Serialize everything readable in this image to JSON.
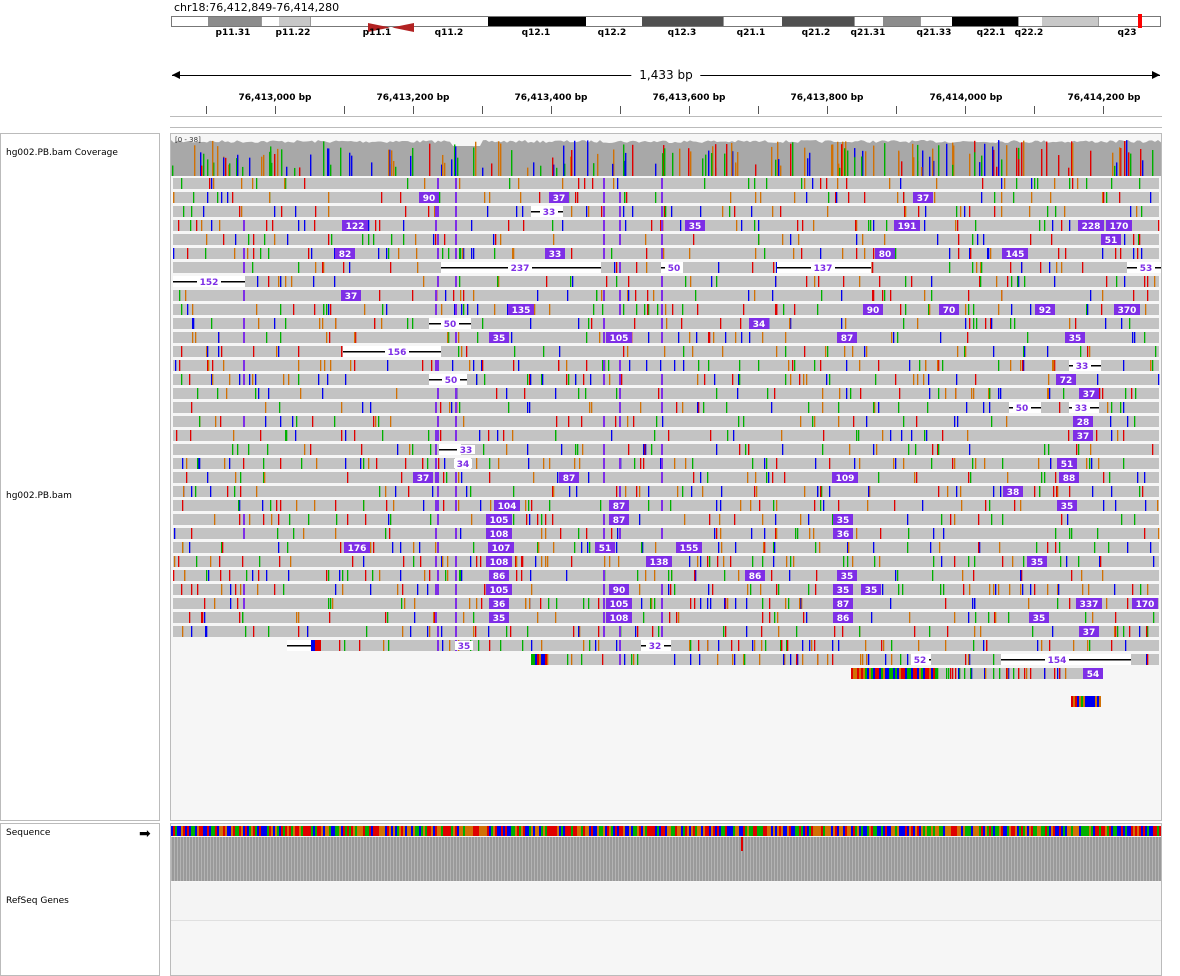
{
  "locus": "chr18:76,412,849-76,414,280",
  "ideogram": {
    "bands": [
      {
        "label": "p11.31",
        "stain": "gpos50"
      },
      {
        "label": "p11.22",
        "stain": "gpos25"
      },
      {
        "label": "p11.1",
        "stain": "acen"
      },
      {
        "label": "q11.2",
        "stain": "gneg"
      },
      {
        "label": "q12.1",
        "stain": "gpos100"
      },
      {
        "label": "q12.2",
        "stain": "gneg"
      },
      {
        "label": "q12.3",
        "stain": "gpos75"
      },
      {
        "label": "q21.1",
        "stain": "gneg"
      },
      {
        "label": "q21.2",
        "stain": "gpos75"
      },
      {
        "label": "q21.31",
        "stain": "gneg"
      },
      {
        "label": "q21.33",
        "stain": "gpos50"
      },
      {
        "label": "q22.1",
        "stain": "gpos100"
      },
      {
        "label": "q22.2",
        "stain": "gneg"
      },
      {
        "label": "q23",
        "stain": "gpos25"
      }
    ],
    "marker_color": "#ff0000"
  },
  "span_label": "1,433 bp",
  "ruler_ticks": [
    "76,413,000 bp",
    "76,413,200 bp",
    "76,413,400 bp",
    "76,413,600 bp",
    "76,413,800 bp",
    "76,414,000 bp",
    "76,414,200 bp"
  ],
  "tracks": {
    "coverage_name": "hg002.PB.bam Coverage",
    "coverage_range": "[0 - 38]",
    "alignment_name": "hg002.PB.bam",
    "sequence_name": "Sequence",
    "refseq_name": "RefSeq Genes"
  },
  "colors": {
    "read_gray": "#c3c3c3",
    "insertion_purple": "#7e2ee6",
    "base_A": "#00b000",
    "base_C": "#0000f0",
    "base_G": "#d17105",
    "base_T": "#e00000",
    "coverage_gray": "#a8a8a8"
  },
  "deletion_labels": [
    {
      "row": 6,
      "text": "237"
    },
    {
      "row": 6,
      "text": "50"
    },
    {
      "row": 6,
      "text": "137"
    },
    {
      "row": 6,
      "text": "53"
    },
    {
      "row": 7,
      "text": "152"
    },
    {
      "row": 2,
      "text": "33"
    },
    {
      "row": 10,
      "text": "50"
    },
    {
      "row": 12,
      "text": "156"
    },
    {
      "row": 13,
      "text": "33"
    },
    {
      "row": 14,
      "text": "50"
    },
    {
      "row": 16,
      "text": "50"
    },
    {
      "row": 16,
      "text": "33"
    },
    {
      "row": 19,
      "text": "33"
    },
    {
      "row": 20,
      "text": "34"
    },
    {
      "row": 33,
      "text": "35"
    },
    {
      "row": 33,
      "text": "32"
    },
    {
      "row": 34,
      "text": "52"
    },
    {
      "row": 34,
      "text": "154"
    }
  ],
  "insertion_labels": [
    {
      "row": 1,
      "text": "90"
    },
    {
      "row": 1,
      "text": "37"
    },
    {
      "row": 1,
      "text": "37"
    },
    {
      "row": 3,
      "text": "122"
    },
    {
      "row": 3,
      "text": "35"
    },
    {
      "row": 3,
      "text": "191"
    },
    {
      "row": 3,
      "text": "228"
    },
    {
      "row": 3,
      "text": "170"
    },
    {
      "row": 4,
      "text": "51"
    },
    {
      "row": 5,
      "text": "82"
    },
    {
      "row": 5,
      "text": "33"
    },
    {
      "row": 5,
      "text": "80"
    },
    {
      "row": 5,
      "text": "145"
    },
    {
      "row": 8,
      "text": "37"
    },
    {
      "row": 9,
      "text": "135"
    },
    {
      "row": 9,
      "text": "90"
    },
    {
      "row": 9,
      "text": "70"
    },
    {
      "row": 9,
      "text": "92"
    },
    {
      "row": 9,
      "text": "370"
    },
    {
      "row": 10,
      "text": "34"
    },
    {
      "row": 11,
      "text": "35"
    },
    {
      "row": 11,
      "text": "105"
    },
    {
      "row": 11,
      "text": "87"
    },
    {
      "row": 11,
      "text": "35"
    },
    {
      "row": 14,
      "text": "72"
    },
    {
      "row": 15,
      "text": "37"
    },
    {
      "row": 17,
      "text": "28"
    },
    {
      "row": 18,
      "text": "37"
    },
    {
      "row": 20,
      "text": "51"
    },
    {
      "row": 21,
      "text": "88"
    },
    {
      "row": 21,
      "text": "37"
    },
    {
      "row": 21,
      "text": "87"
    },
    {
      "row": 21,
      "text": "109"
    },
    {
      "row": 22,
      "text": "38"
    },
    {
      "row": 23,
      "text": "35"
    },
    {
      "row": 23,
      "text": "104"
    },
    {
      "row": 23,
      "text": "87"
    },
    {
      "row": 24,
      "text": "35"
    },
    {
      "row": 24,
      "text": "105"
    },
    {
      "row": 24,
      "text": "87"
    },
    {
      "row": 25,
      "text": "36"
    },
    {
      "row": 25,
      "text": "108"
    },
    {
      "row": 26,
      "text": "155"
    },
    {
      "row": 26,
      "text": "176"
    },
    {
      "row": 26,
      "text": "107"
    },
    {
      "row": 26,
      "text": "51"
    },
    {
      "row": 27,
      "text": "35"
    },
    {
      "row": 27,
      "text": "108"
    },
    {
      "row": 27,
      "text": "138"
    },
    {
      "row": 28,
      "text": "35"
    },
    {
      "row": 28,
      "text": "86"
    },
    {
      "row": 28,
      "text": "86"
    },
    {
      "row": 29,
      "text": "35"
    },
    {
      "row": 29,
      "text": "105"
    },
    {
      "row": 29,
      "text": "90"
    },
    {
      "row": 29,
      "text": "35"
    },
    {
      "row": 30,
      "text": "36"
    },
    {
      "row": 30,
      "text": "105"
    },
    {
      "row": 30,
      "text": "87"
    },
    {
      "row": 30,
      "text": "337"
    },
    {
      "row": 30,
      "text": "170"
    },
    {
      "row": 31,
      "text": "35"
    },
    {
      "row": 31,
      "text": "108"
    },
    {
      "row": 31,
      "text": "86"
    },
    {
      "row": 31,
      "text": "35"
    },
    {
      "row": 32,
      "text": "37"
    },
    {
      "row": 35,
      "text": "54"
    }
  ]
}
